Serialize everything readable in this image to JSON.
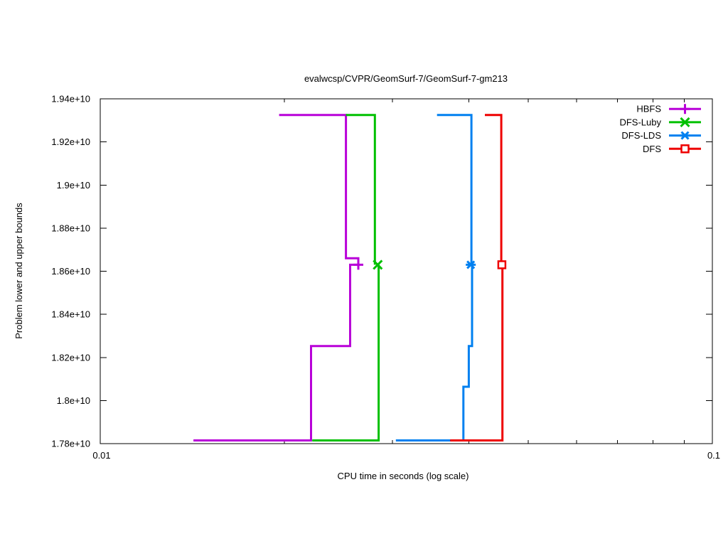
{
  "title": "evalwcsp/CVPR/GeomSurf-7/GeomSurf-7-gm213",
  "axes": {
    "x": {
      "label": "CPU time in seconds (log scale)",
      "scale": "log",
      "range": [
        0.01,
        0.1
      ],
      "tick_labels": [
        "0.01",
        "0.1"
      ],
      "tick_values": [
        0.01,
        0.1
      ],
      "minor_tick_values": [
        0.02,
        0.03,
        0.04,
        0.05,
        0.06,
        0.07,
        0.08,
        0.09
      ]
    },
    "y": {
      "label": "Problem lower and upper bounds",
      "range": [
        17800000000.0,
        19400000000.0
      ],
      "tick_labels": [
        "1.78e+10",
        "1.8e+10",
        "1.82e+10",
        "1.84e+10",
        "1.86e+10",
        "1.88e+10",
        "1.9e+10",
        "1.92e+10",
        "1.94e+10"
      ],
      "tick_values": [
        17800000000.0,
        18000000000.0,
        18200000000.0,
        18400000000.0,
        18600000000.0,
        18800000000.0,
        19000000000.0,
        19200000000.0,
        19400000000.0
      ]
    }
  },
  "legend": {
    "position": "top-right"
  },
  "chart_data": {
    "type": "line",
    "title": "evalwcsp/CVPR/GeomSurf-7/GeomSurf-7-gm213",
    "xlabel": "CPU time in seconds (log scale)",
    "ylabel": "Problem lower and upper bounds",
    "x_scale": "log",
    "xlim": [
      0.01,
      0.1
    ],
    "ylim": [
      17800000000.0,
      19400000000.0
    ],
    "grid": false,
    "legend_position": "top-right",
    "series": [
      {
        "name": "HBFS",
        "color": "#b800d8",
        "marker": "plus",
        "upper_bound": [
          [
            0.0196,
            19325000000.0
          ],
          [
            0.0252,
            19325000000.0
          ],
          [
            0.0252,
            18660000000.0
          ],
          [
            0.0264,
            18660000000.0
          ],
          [
            0.0264,
            18630000000.0
          ]
        ],
        "lower_bound": [
          [
            0.0142,
            17815000000.0
          ],
          [
            0.0221,
            17815000000.0
          ],
          [
            0.0221,
            18253000000.0
          ],
          [
            0.0256,
            18253000000.0
          ],
          [
            0.0256,
            18630000000.0
          ],
          [
            0.0264,
            18630000000.0
          ]
        ],
        "optimum": [
          0.0264,
          18630000000.0
        ]
      },
      {
        "name": "DFS-Luby",
        "color": "#00c000",
        "marker": "cross",
        "upper_bound": [
          [
            0.0252,
            19325000000.0
          ],
          [
            0.0281,
            19325000000.0
          ],
          [
            0.0281,
            18630000000.0
          ]
        ],
        "lower_bound": [
          [
            0.0222,
            17815000000.0
          ],
          [
            0.0285,
            17815000000.0
          ],
          [
            0.0285,
            18630000000.0
          ]
        ],
        "optimum": [
          0.0284,
          18630000000.0
        ]
      },
      {
        "name": "DFS-LDS",
        "color": "#0080f0",
        "marker": "asterisk",
        "upper_bound": [
          [
            0.0355,
            19325000000.0
          ],
          [
            0.0404,
            19325000000.0
          ],
          [
            0.0404,
            18630000000.0
          ]
        ],
        "lower_bound": [
          [
            0.0304,
            17815000000.0
          ],
          [
            0.0392,
            17815000000.0
          ],
          [
            0.0392,
            18064000000.0
          ],
          [
            0.04,
            18064000000.0
          ],
          [
            0.04,
            18253000000.0
          ],
          [
            0.0405,
            18253000000.0
          ],
          [
            0.0405,
            18630000000.0
          ]
        ],
        "optimum": [
          0.0403,
          18630000000.0
        ]
      },
      {
        "name": "DFS",
        "color": "#ee0000",
        "marker": "open-square",
        "upper_bound": [
          [
            0.0425,
            19325000000.0
          ],
          [
            0.0452,
            19325000000.0
          ],
          [
            0.0452,
            18630000000.0
          ]
        ],
        "lower_bound": [
          [
            0.0373,
            17815000000.0
          ],
          [
            0.0454,
            17815000000.0
          ],
          [
            0.0454,
            18630000000.0
          ]
        ],
        "optimum": [
          0.0453,
          18630000000.0
        ]
      }
    ]
  }
}
